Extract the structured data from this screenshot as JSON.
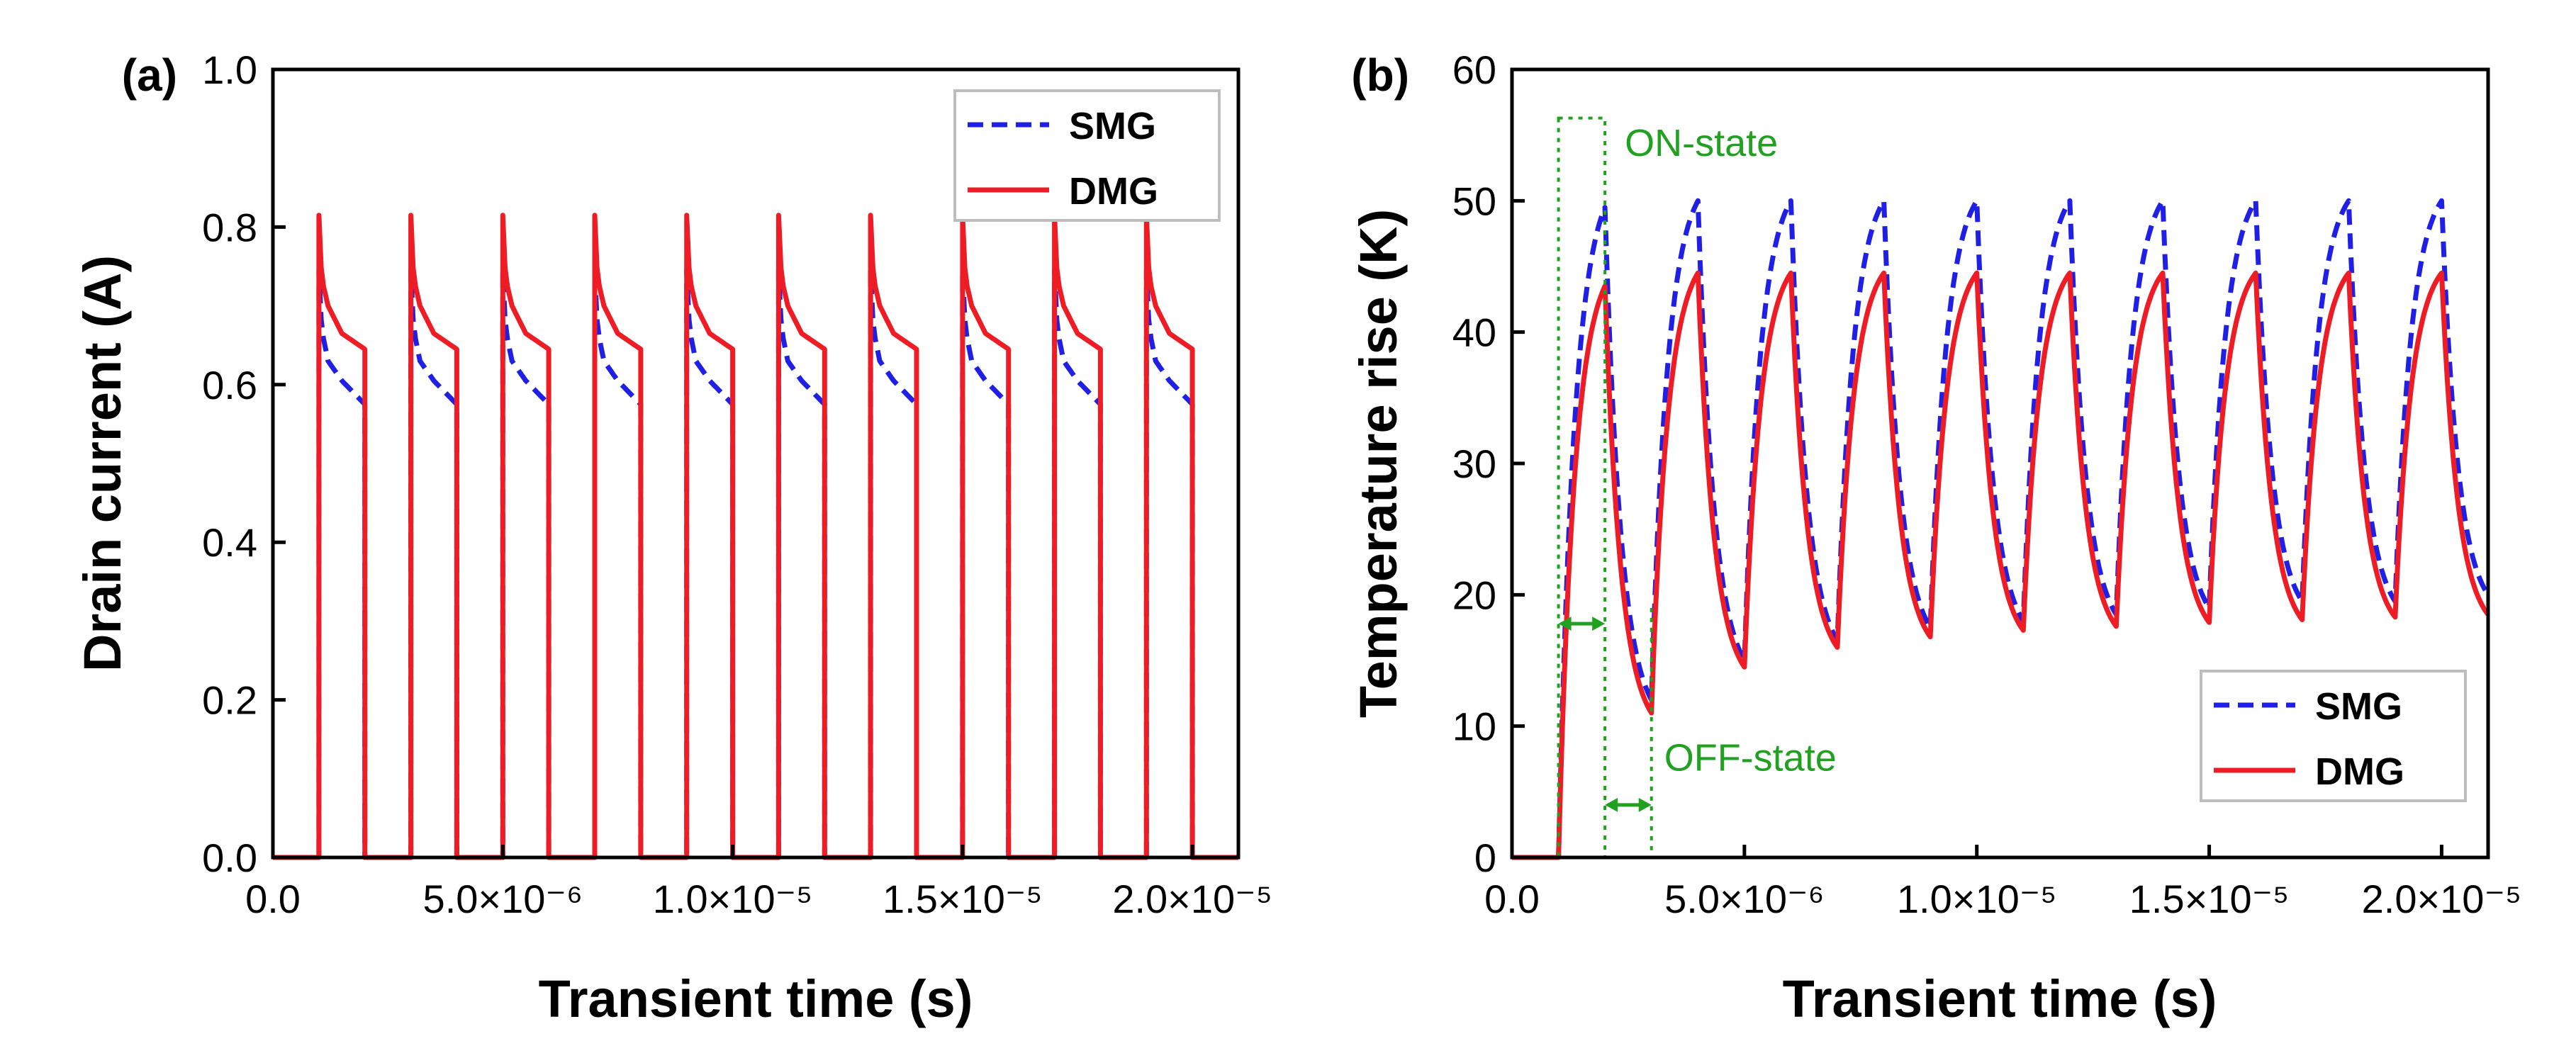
{
  "chart_data": [
    {
      "panel_label": "(a)",
      "type": "line",
      "title": "",
      "xlabel": "Transient time (s)",
      "ylabel": "Drain current (A)",
      "xlim": [
        0,
        2.1e-05
      ],
      "ylim": [
        0,
        1.0
      ],
      "xticks": [
        0,
        5e-06,
        1e-05,
        1.5e-05,
        2e-05
      ],
      "xtick_labels": [
        "0.0",
        "5.0×10⁻⁶",
        "1.0×10⁻⁵",
        "1.5×10⁻⁵",
        "2.0×10⁻⁵"
      ],
      "yticks": [
        0,
        0.2,
        0.4,
        0.6,
        0.8,
        1.0
      ],
      "ytick_labels": [
        "0.0",
        "0.2",
        "0.4",
        "0.6",
        "0.8",
        "1.0"
      ],
      "grid": false,
      "legend_position": "top-right",
      "pulse": {
        "first_on": 1e-06,
        "period": 2e-06,
        "on_duration": 1e-06,
        "cycles": 10
      },
      "series": [
        {
          "name": "SMG",
          "color": "#1f1fe6",
          "dash": "dashed",
          "on_profile": [
            [
              0,
              0.745
            ],
            [
              0.06,
              0.67
            ],
            [
              0.2,
              0.63
            ],
            [
              0.5,
              0.605
            ],
            [
              1.0,
              0.575
            ]
          ]
        },
        {
          "name": "DMG",
          "color": "#ee1c25",
          "dash": "solid",
          "on_profile": [
            [
              0,
              0.815
            ],
            [
              0.06,
              0.735
            ],
            [
              0.2,
              0.7
            ],
            [
              0.5,
              0.665
            ],
            [
              1.0,
              0.645
            ]
          ]
        }
      ],
      "annotations": []
    },
    {
      "panel_label": "(b)",
      "type": "line",
      "title": "",
      "xlabel": "Transient time (s)",
      "ylabel": "Temperature rise (K)",
      "xlim": [
        0,
        2.1e-05
      ],
      "ylim": [
        0,
        60
      ],
      "xticks": [
        0,
        5e-06,
        1e-05,
        1.5e-05,
        2e-05
      ],
      "xtick_labels": [
        "0.0",
        "5.0×10⁻⁶",
        "1.0×10⁻⁵",
        "1.5×10⁻⁵",
        "2.0×10⁻⁵"
      ],
      "yticks": [
        0,
        10,
        20,
        30,
        40,
        50,
        60
      ],
      "ytick_labels": [
        "0",
        "10",
        "20",
        "30",
        "40",
        "50",
        "60"
      ],
      "grid": false,
      "legend_position": "bottom-right",
      "pulse": {
        "first_on": 1e-06,
        "period": 2e-06,
        "on_duration": 1e-06,
        "cycles": 10
      },
      "series": [
        {
          "name": "SMG",
          "color": "#1f1fe6",
          "dash": "dashed",
          "peaks": [
            49.5,
            50,
            50,
            50,
            50,
            50,
            50,
            50,
            50,
            50
          ],
          "valleys": [
            12,
            15,
            16.5,
            17.5,
            18,
            18.5,
            19,
            19.5,
            19.5,
            20
          ]
        },
        {
          "name": "DMG",
          "color": "#ee1c25",
          "dash": "solid",
          "peaks": [
            43.5,
            44.5,
            44.5,
            44.5,
            44.5,
            44.5,
            44.5,
            44.5,
            44.5,
            44.5
          ],
          "valleys": [
            11,
            14.5,
            16,
            16.8,
            17.3,
            17.6,
            17.9,
            18.1,
            18.3,
            18.5
          ]
        }
      ],
      "annotations": [
        {
          "text": "ON-state",
          "color": "#22a022",
          "x_range": [
            1e-06,
            2e-06
          ]
        },
        {
          "text": "OFF-state",
          "color": "#22a022",
          "x_range": [
            2e-06,
            3e-06
          ]
        }
      ]
    }
  ]
}
